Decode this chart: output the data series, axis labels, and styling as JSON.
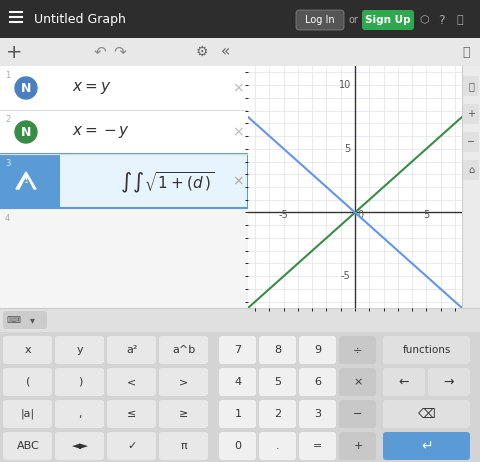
{
  "title": "Untitled Graph",
  "bg_top": "#2d2d2d",
  "bg_toolbar": "#e8e8e8",
  "bg_panel": "#f9f9f9",
  "bg_white": "#ffffff",
  "bg_blue_row": "#6baed6",
  "bg_blue_row_input": "#e8f4fd",
  "bg_enter_btn": "#5b9bd5",
  "bg_kbd": "#d4d4d4",
  "bg_kbd_sym": "#e0e0e0",
  "bg_kbd_num_light": "#f0f0f0",
  "bg_kbd_num_dark": "#c8c8c8",
  "bg_right_sidebar": "#e8e8e8",
  "line_green": "#388c46",
  "line_blue": "#6495ed",
  "grid_color": "#dde",
  "axis_color": "#333333",
  "sign_up_green": "#2fa84f",
  "icon_blue": "#4a7fc1",
  "icon_green": "#388c46",
  "warn_blue": "#5b9bd5",
  "keyboard_row1_sym": [
    "x",
    "y",
    "a²",
    "a^b"
  ],
  "keyboard_row2_sym": [
    "(",
    ")",
    "<",
    ">"
  ],
  "keyboard_row3_sym": [
    "|a|",
    ",",
    "≤",
    "≥"
  ],
  "keyboard_row4_sym": [
    "ABC",
    "◄►",
    "✓",
    "π"
  ],
  "numpad_row1": [
    "7",
    "8",
    "9",
    "÷"
  ],
  "numpad_row2": [
    "4",
    "5",
    "6",
    "×"
  ],
  "numpad_row3": [
    "1",
    "2",
    "3",
    "−"
  ],
  "numpad_row4": [
    "0",
    ".",
    "=",
    "+"
  ],
  "func_btn": "functions",
  "xmin": -7.5,
  "xmax": 7.5,
  "ymin": -7.5,
  "ymax": 11.5
}
